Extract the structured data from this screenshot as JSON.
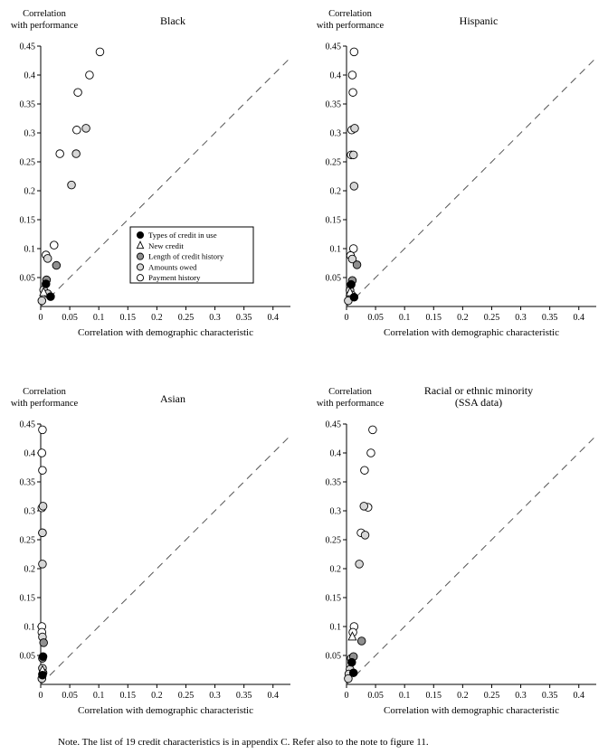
{
  "figure": {
    "note": "Note. The list of 19 credit characteristics is in appendix C. Refer also to the note to figure 11."
  },
  "axes": {
    "xlabel": "Correlation with demographic characteristic",
    "ylabel_lines": [
      "Correlation",
      "with performance"
    ],
    "xlim": [
      0,
      0.43
    ],
    "ylim": [
      0,
      0.45
    ],
    "xticks": [
      0,
      0.05,
      0.1,
      0.15,
      0.2,
      0.25,
      0.3,
      0.35,
      0.4
    ],
    "yticks": [
      0.05,
      0.1,
      0.15,
      0.2,
      0.25,
      0.3,
      0.35,
      0.4,
      0.45
    ],
    "diagonal_line": "y = x dashed reference line",
    "line_color": "#555555"
  },
  "legend": {
    "panel": 0,
    "items": [
      {
        "label": "Types of credit in use",
        "marker": "filled-black"
      },
      {
        "label": "New credit",
        "marker": "open-triangle"
      },
      {
        "label": "Length of credit history",
        "marker": "filled-darkgray"
      },
      {
        "label": "Amounts owed",
        "marker": "filled-lightgray"
      },
      {
        "label": "Payment history",
        "marker": "open-circle"
      }
    ]
  },
  "marker_colors": {
    "filled-black": "#000000",
    "filled-darkgray": "#8f8f8f",
    "filled-lightgray": "#d6d6d6",
    "open-circle": "#ffffff",
    "open-triangle": "#ffffff"
  },
  "chart_data": [
    {
      "type": "scatter",
      "title_lines": [
        "Black"
      ],
      "series": [
        {
          "name": "Types of credit in use",
          "marker": "filled-black",
          "points": [
            [
              0.009,
              0.039
            ],
            [
              0.017,
              0.017
            ]
          ]
        },
        {
          "name": "New credit",
          "marker": "open-triangle",
          "points": [
            [
              0.005,
              0.024
            ]
          ]
        },
        {
          "name": "Length of credit history",
          "marker": "filled-darkgray",
          "points": [
            [
              0.027,
              0.071
            ],
            [
              0.01,
              0.046
            ]
          ]
        },
        {
          "name": "Amounts owed",
          "marker": "filled-lightgray",
          "points": [
            [
              0.078,
              0.308
            ],
            [
              0.061,
              0.264
            ],
            [
              0.053,
              0.21
            ],
            [
              0.012,
              0.083
            ],
            [
              0.005,
              0.029
            ],
            [
              0.012,
              0.022
            ],
            [
              0.002,
              0.01
            ]
          ]
        },
        {
          "name": "Payment history",
          "marker": "open-circle",
          "points": [
            [
              0.102,
              0.44
            ],
            [
              0.084,
              0.4
            ],
            [
              0.064,
              0.37
            ],
            [
              0.062,
              0.305
            ],
            [
              0.033,
              0.264
            ],
            [
              0.023,
              0.106
            ],
            [
              0.009,
              0.089
            ]
          ]
        }
      ]
    },
    {
      "type": "scatter",
      "title_lines": [
        "Hispanic"
      ],
      "series": [
        {
          "name": "Types of credit in use",
          "marker": "filled-black",
          "points": [
            [
              0.008,
              0.038
            ],
            [
              0.013,
              0.016
            ]
          ]
        },
        {
          "name": "New credit",
          "marker": "open-triangle",
          "points": [
            [
              0.006,
              0.024
            ]
          ]
        },
        {
          "name": "Length of credit history",
          "marker": "filled-darkgray",
          "points": [
            [
              0.018,
              0.072
            ],
            [
              0.01,
              0.045
            ]
          ]
        },
        {
          "name": "Amounts owed",
          "marker": "filled-lightgray",
          "points": [
            [
              0.014,
              0.308
            ],
            [
              0.012,
              0.262
            ],
            [
              0.013,
              0.208
            ],
            [
              0.01,
              0.082
            ],
            [
              0.006,
              0.028
            ],
            [
              0.009,
              0.02
            ],
            [
              0.003,
              0.01
            ]
          ]
        },
        {
          "name": "Payment history",
          "marker": "open-circle",
          "points": [
            [
              0.013,
              0.44
            ],
            [
              0.01,
              0.4
            ],
            [
              0.011,
              0.37
            ],
            [
              0.009,
              0.305
            ],
            [
              0.008,
              0.262
            ],
            [
              0.012,
              0.1
            ],
            [
              0.007,
              0.088
            ]
          ]
        }
      ]
    },
    {
      "type": "scatter",
      "title_lines": [
        "Asian"
      ],
      "series": [
        {
          "name": "Types of credit in use",
          "marker": "filled-black",
          "points": [
            [
              0.004,
              0.048
            ],
            [
              0.003,
              0.016
            ]
          ]
        },
        {
          "name": "New credit",
          "marker": "open-triangle",
          "points": [
            [
              0.003,
              0.024
            ]
          ]
        },
        {
          "name": "Length of credit history",
          "marker": "filled-darkgray",
          "points": [
            [
              0.005,
              0.072
            ],
            [
              0.003,
              0.045
            ]
          ]
        },
        {
          "name": "Amounts owed",
          "marker": "filled-lightgray",
          "points": [
            [
              0.004,
              0.308
            ],
            [
              0.003,
              0.262
            ],
            [
              0.003,
              0.208
            ],
            [
              0.003,
              0.082
            ],
            [
              0.003,
              0.028
            ],
            [
              0.004,
              0.02
            ],
            [
              0.002,
              0.01
            ]
          ]
        },
        {
          "name": "Payment history",
          "marker": "open-circle",
          "points": [
            [
              0.003,
              0.44
            ],
            [
              0.002,
              0.4
            ],
            [
              0.003,
              0.37
            ],
            [
              0.002,
              0.305
            ],
            [
              0.003,
              0.262
            ],
            [
              0.002,
              0.1
            ],
            [
              0.002,
              0.09
            ]
          ]
        }
      ]
    },
    {
      "type": "scatter",
      "title_lines": [
        "Racial or ethnic minority",
        "(SSA data)"
      ],
      "series": [
        {
          "name": "Types of credit in use",
          "marker": "filled-black",
          "points": [
            [
              0.009,
              0.038
            ],
            [
              0.012,
              0.02
            ]
          ]
        },
        {
          "name": "New credit",
          "marker": "open-triangle",
          "points": [
            [
              0.01,
              0.082
            ]
          ]
        },
        {
          "name": "Length of credit history",
          "marker": "filled-darkgray",
          "points": [
            [
              0.026,
              0.075
            ],
            [
              0.012,
              0.048
            ]
          ]
        },
        {
          "name": "Amounts owed",
          "marker": "filled-lightgray",
          "points": [
            [
              0.03,
              0.308
            ],
            [
              0.032,
              0.258
            ],
            [
              0.022,
              0.208
            ],
            [
              0.008,
              0.045
            ],
            [
              0.006,
              0.026
            ],
            [
              0.004,
              0.018
            ],
            [
              0.003,
              0.01
            ]
          ]
        },
        {
          "name": "Payment history",
          "marker": "open-circle",
          "points": [
            [
              0.045,
              0.44
            ],
            [
              0.042,
              0.4
            ],
            [
              0.031,
              0.37
            ],
            [
              0.037,
              0.306
            ],
            [
              0.025,
              0.262
            ],
            [
              0.013,
              0.1
            ],
            [
              0.011,
              0.09
            ]
          ]
        }
      ]
    }
  ]
}
